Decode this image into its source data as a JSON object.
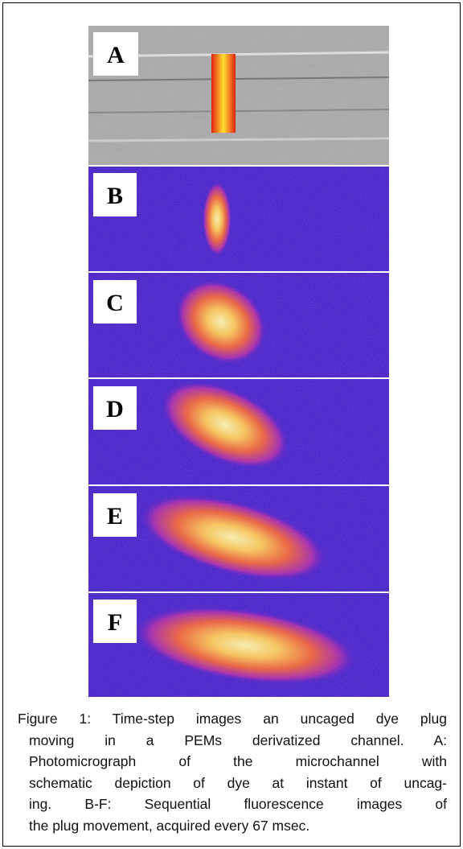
{
  "figure": {
    "panels": [
      {
        "label": "A"
      },
      {
        "label": "B"
      },
      {
        "label": "C"
      },
      {
        "label": "D"
      },
      {
        "label": "E"
      },
      {
        "label": "F"
      }
    ],
    "caption_lines": [
      "Figure 1:  Time-step images an uncaged dye plug",
      "moving in a PEMs derivatized channel. A:",
      "Photomicrograph of the microchannel with",
      "schematic depiction of dye at instant of uncag-",
      "ing.  B-F:  Sequential fluorescence images of",
      "the plug movement, acquired every 67 msec."
    ]
  }
}
